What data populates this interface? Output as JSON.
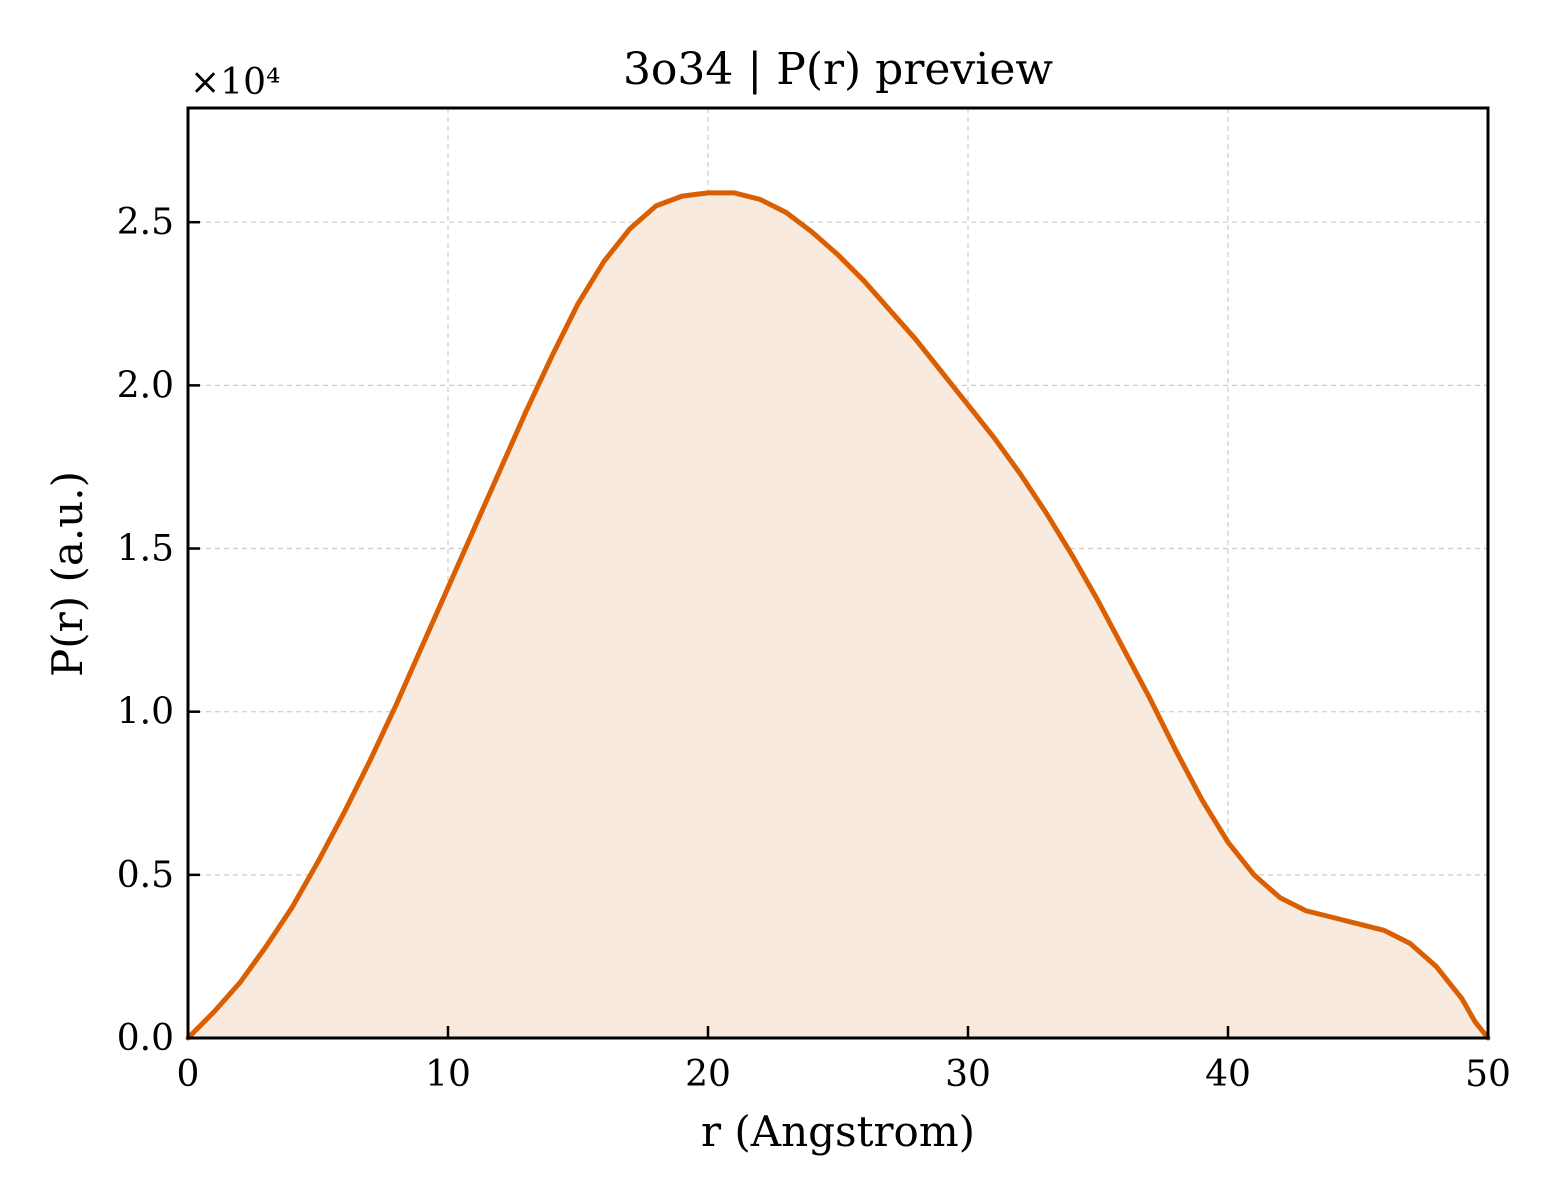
{
  "chart_data": {
    "type": "area",
    "title": "3o34 | P(r) preview",
    "xlabel": "r (Angstrom)",
    "ylabel": "P(r) (a.u.)",
    "y_multiplier_label": "×10⁴",
    "xlim": [
      0,
      50
    ],
    "ylim": [
      0,
      2.85
    ],
    "x_ticks": [
      "0",
      "10",
      "20",
      "30",
      "40",
      "50"
    ],
    "x_tick_values": [
      0,
      10,
      20,
      30,
      40,
      50
    ],
    "y_ticks": [
      "0.0",
      "0.5",
      "1.0",
      "1.5",
      "2.0",
      "2.5"
    ],
    "y_tick_values": [
      0.0,
      0.5,
      1.0,
      1.5,
      2.0,
      2.5
    ],
    "grid": true,
    "line_color": "#d95f02",
    "fill_color": "#f8eadf",
    "series": [
      {
        "x": [
          0,
          1,
          2,
          3,
          4,
          5,
          6,
          7,
          8,
          9,
          10,
          11,
          12,
          13,
          14,
          15,
          16,
          17,
          18,
          19,
          20,
          21,
          22,
          23,
          24,
          25,
          26,
          27,
          28,
          29,
          30,
          31,
          32,
          33,
          34,
          35,
          36,
          37,
          38,
          39,
          40,
          41,
          42,
          43,
          44,
          45,
          46,
          47,
          48,
          49,
          49.5,
          50
        ],
        "y": [
          0.0,
          0.08,
          0.17,
          0.28,
          0.4,
          0.54,
          0.69,
          0.85,
          1.02,
          1.2,
          1.38,
          1.56,
          1.74,
          1.92,
          2.09,
          2.25,
          2.38,
          2.48,
          2.55,
          2.58,
          2.59,
          2.59,
          2.57,
          2.53,
          2.47,
          2.4,
          2.32,
          2.23,
          2.14,
          2.04,
          1.94,
          1.84,
          1.73,
          1.61,
          1.48,
          1.34,
          1.19,
          1.04,
          0.88,
          0.73,
          0.6,
          0.5,
          0.43,
          0.39,
          0.37,
          0.35,
          0.33,
          0.29,
          0.22,
          0.12,
          0.05,
          0.0
        ]
      }
    ]
  }
}
